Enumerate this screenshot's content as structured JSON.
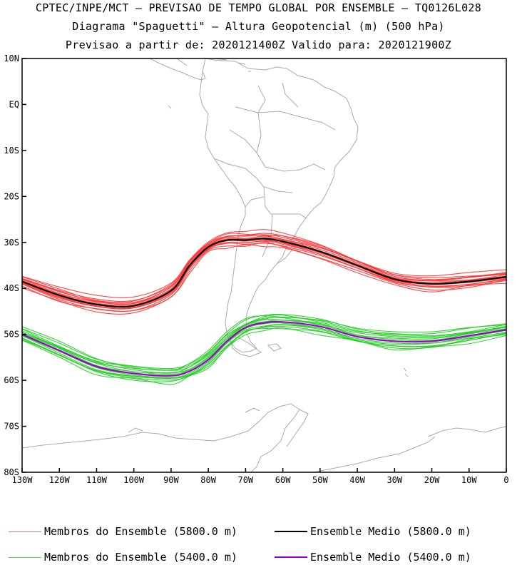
{
  "titles": {
    "line1": "CPTEC/INPE/MCT — PREVISAO DE TEMPO GLOBAL POR ENSEMBLE — TQ0126L028",
    "line2": "Diagrama \"Spaguetti\" — Altura Geopotencial (m) (500 hPa)",
    "line3": "Previsao a partir de: 2020121400Z  Valido para: 2020121900Z"
  },
  "map": {
    "lat_labels": [
      "10N",
      "EQ",
      "10S",
      "20S",
      "30S",
      "40S",
      "50S",
      "60S",
      "70S",
      "80S"
    ],
    "lon_labels": [
      "130W",
      "120W",
      "110W",
      "100W",
      "90W",
      "80W",
      "70W",
      "60W",
      "50W",
      "40W",
      "30W",
      "20W",
      "10W",
      "0"
    ],
    "lat_range": [
      10,
      -80
    ],
    "lon_range": [
      -130,
      0
    ],
    "land_color": "#aaaaaa"
  },
  "chart_data": {
    "type": "line",
    "x_units": "longitude (deg)",
    "y_units": "latitude (deg)",
    "series": [
      {
        "name": "Ensemble Medio (5800.0 m)",
        "color": "#000000",
        "role": "mean",
        "x": [
          -130,
          -120,
          -110,
          -100,
          -90,
          -85,
          -80,
          -75,
          -70,
          -65,
          -60,
          -50,
          -40,
          -30,
          -20,
          -10,
          0
        ],
        "y": [
          -38.5,
          -41.5,
          -43.5,
          -43.8,
          -40.5,
          -35,
          -31,
          -29.5,
          -29.5,
          -29.2,
          -29.8,
          -32,
          -35,
          -38,
          -39,
          -38.5,
          -37.5
        ]
      },
      {
        "name": "Ensemble Medio (5400.0 m)",
        "color": "#9900cc",
        "role": "mean",
        "x": [
          -130,
          -120,
          -110,
          -100,
          -90,
          -85,
          -80,
          -75,
          -70,
          -65,
          -60,
          -50,
          -40,
          -30,
          -20,
          -10,
          0
        ],
        "y": [
          -50,
          -53.5,
          -57,
          -58.5,
          -59,
          -58,
          -55.5,
          -51.5,
          -48.5,
          -47.5,
          -47.3,
          -48.3,
          -50.5,
          -51.5,
          -51.5,
          -50.3,
          -49
        ]
      }
    ],
    "ensemble_members": [
      {
        "name": "Membros do Ensemble (5800.0 m)",
        "color": "#ff3333",
        "x": [
          -130,
          -120,
          -110,
          -100,
          -90,
          -85,
          -80,
          -75,
          -70,
          -65,
          -60,
          -50,
          -40,
          -30,
          -20,
          -10,
          0
        ],
        "y": [
          -38.5,
          -41.5,
          -43.5,
          -43.8,
          -40.5,
          -35,
          -31,
          -29.5,
          -29.5,
          -29.2,
          -29.8,
          -32,
          -35,
          -38,
          -39,
          -38.5,
          -37.5
        ],
        "offsets": [
          0.0,
          1.2,
          -1.0,
          0.6,
          -0.6,
          1.6,
          -1.4,
          0.3,
          -0.3,
          2.0,
          -1.8,
          0.9,
          -0.9,
          1.4
        ]
      },
      {
        "name": "Membros do Ensemble (5400.0 m)",
        "color": "#22cc22",
        "x": [
          -130,
          -120,
          -110,
          -100,
          -90,
          -85,
          -80,
          -75,
          -70,
          -65,
          -60,
          -50,
          -40,
          -30,
          -20,
          -10,
          0
        ],
        "y": [
          -50,
          -53.5,
          -57,
          -58.5,
          -59,
          -58,
          -55.5,
          -51.5,
          -48.5,
          -47.5,
          -47.3,
          -48.3,
          -50.5,
          -51.5,
          -51.5,
          -50.3,
          -49
        ],
        "offsets": [
          0.0,
          1.3,
          -1.1,
          0.7,
          -0.7,
          1.7,
          -1.5,
          0.4,
          -0.4,
          2.1,
          -1.9,
          1.0,
          -1.0,
          1.5
        ]
      }
    ]
  },
  "legend": {
    "members_5800": {
      "label": "Membros do Ensemble (5800.0 m)",
      "color": "#ff6666"
    },
    "mean_5800": {
      "label": "Ensemble Medio (5800.0 m)",
      "color": "#000000"
    },
    "members_5400": {
      "label": "Membros do Ensemble (5400.0 m)",
      "color": "#55dd55"
    },
    "mean_5400": {
      "label": "Ensemble Medio (5400.0 m)",
      "color": "#9900cc"
    }
  }
}
